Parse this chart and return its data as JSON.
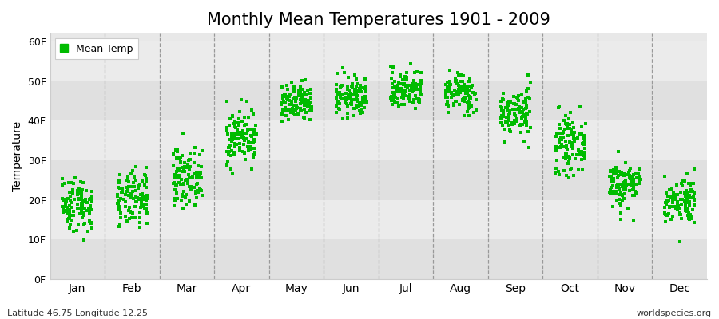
{
  "title": "Monthly Mean Temperatures 1901 - 2009",
  "ylabel": "Temperature",
  "xlabel_labels": [
    "Jan",
    "Feb",
    "Mar",
    "Apr",
    "May",
    "Jun",
    "Jul",
    "Aug",
    "Sep",
    "Oct",
    "Nov",
    "Dec"
  ],
  "ytick_labels": [
    "0F",
    "10F",
    "20F",
    "30F",
    "40F",
    "50F",
    "60F"
  ],
  "ytick_values": [
    0,
    10,
    20,
    30,
    40,
    50,
    60
  ],
  "ylim": [
    0,
    62
  ],
  "dot_color": "#00bb00",
  "dot_size": 5,
  "background_color": "#e8e8e8",
  "band_colors": [
    "#e0e0e0",
    "#ebebeb"
  ],
  "footnote_left": "Latitude 46.75 Longitude 12.25",
  "footnote_right": "worldspecies.org",
  "legend_label": "Mean Temp",
  "title_fontsize": 15,
  "n_years": 109,
  "monthly_means_F": [
    19,
    20,
    26,
    36,
    44,
    46,
    48,
    47,
    42,
    34,
    24,
    20
  ],
  "monthly_stds_F": [
    3.5,
    3.5,
    3.5,
    3.5,
    2.5,
    2.5,
    2.5,
    2.5,
    3.0,
    3.5,
    3.0,
    3.0
  ]
}
